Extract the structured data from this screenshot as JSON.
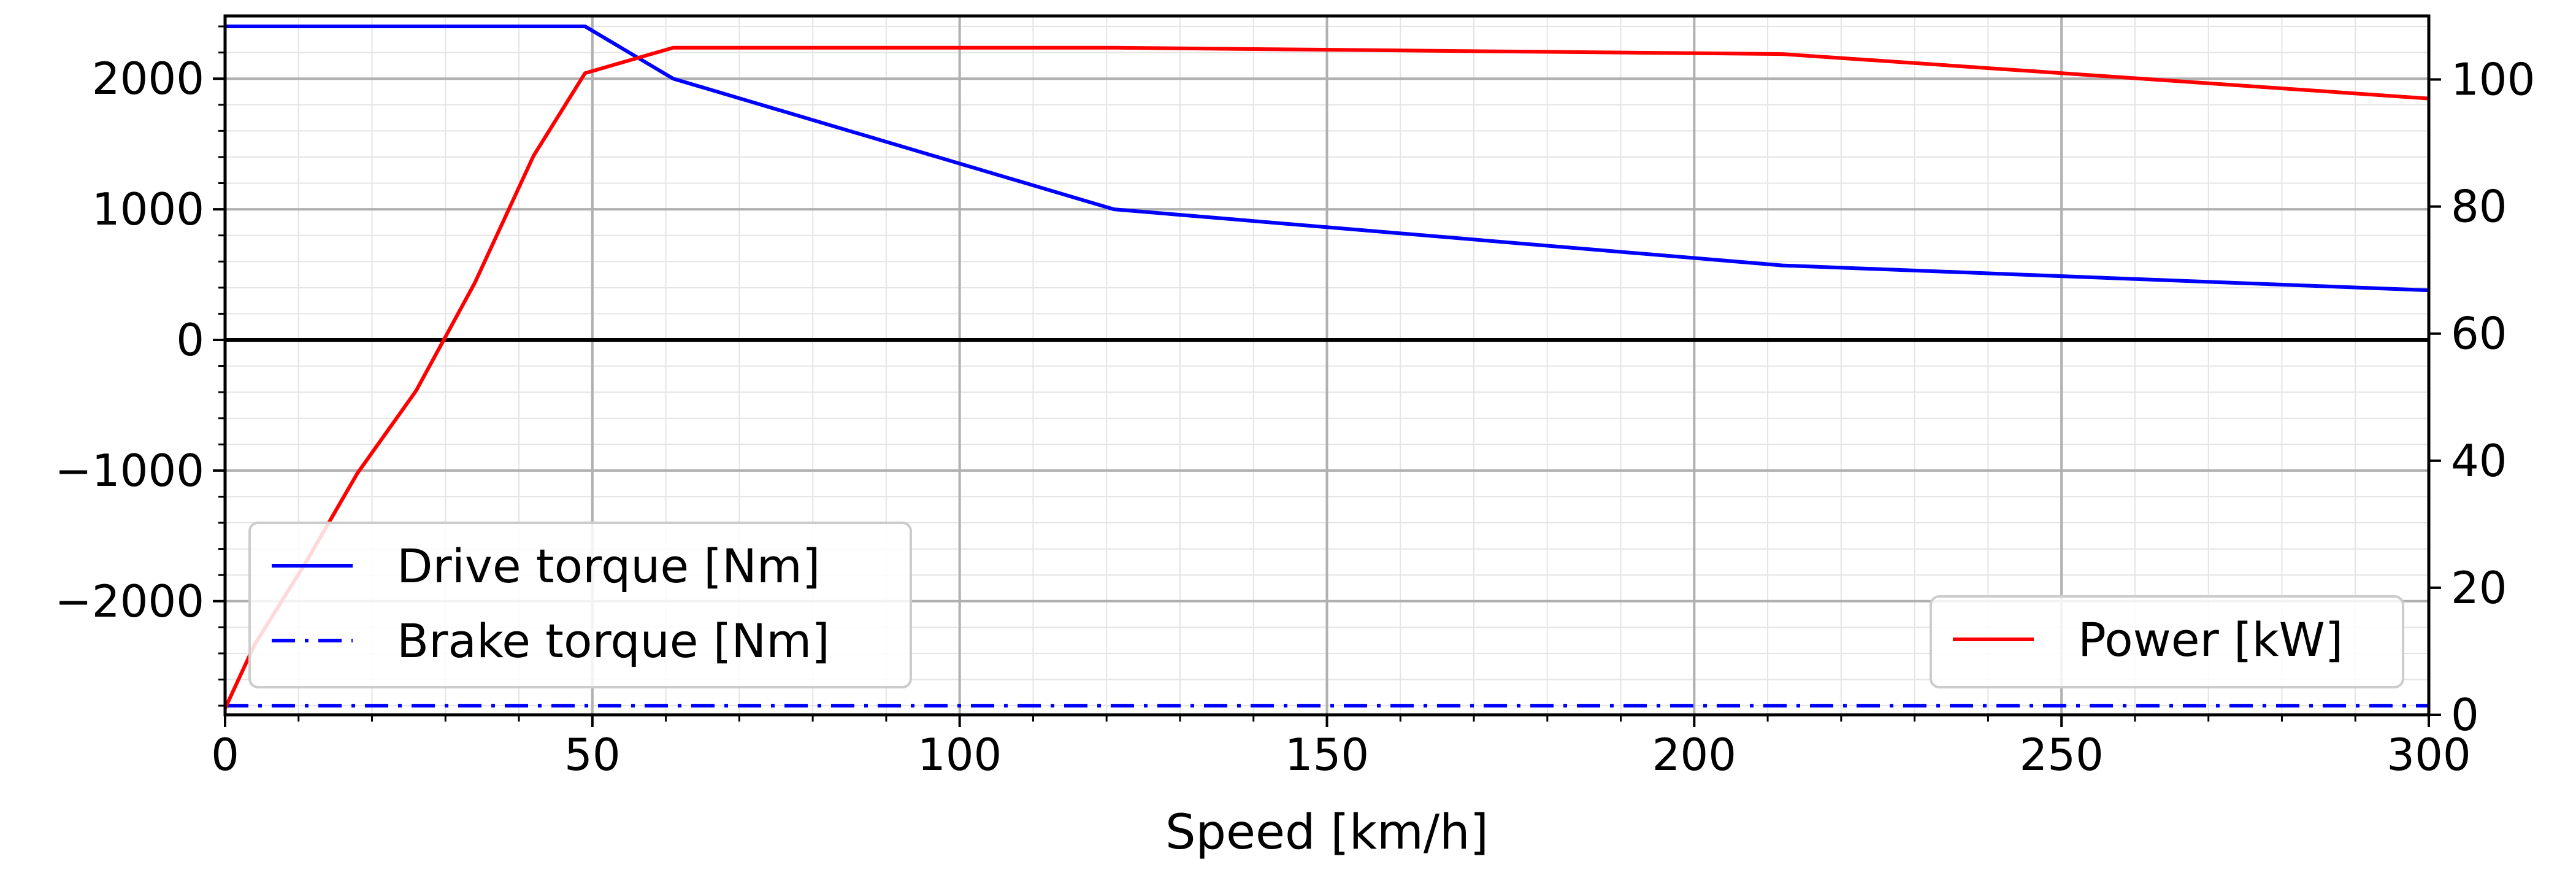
{
  "chart_data": {
    "type": "line",
    "title": "",
    "xlabel": "Speed [km/h]",
    "ylabel": "",
    "y2label": "",
    "xlim": [
      0,
      300
    ],
    "ylim": [
      -2870,
      2480
    ],
    "y2lim": [
      0,
      110
    ],
    "x_ticks": [
      0,
      50,
      100,
      150,
      200,
      250,
      300
    ],
    "x_tick_labels": [
      "0",
      "50",
      "100",
      "150",
      "200",
      "250",
      "300"
    ],
    "y_ticks": [
      -2000,
      -1000,
      0,
      1000,
      2000
    ],
    "y_tick_labels": [
      "−2000",
      "−1000",
      "0",
      "1000",
      "2000"
    ],
    "y2_ticks": [
      0,
      20,
      40,
      60,
      80,
      100
    ],
    "y2_tick_labels": [
      "0",
      "20",
      "40",
      "60",
      "80",
      "100"
    ],
    "grid": true,
    "minor_grid": true,
    "zero_line": true,
    "series": [
      {
        "name": "Drive torque [Nm]",
        "axis": "left",
        "color": "#0000ff",
        "style": "solid",
        "x": [
          0,
          49,
          61,
          121,
          212,
          300
        ],
        "y": [
          2400,
          2400,
          2000,
          1000,
          570,
          380
        ]
      },
      {
        "name": "Brake torque [Nm]",
        "axis": "left",
        "color": "#0000ff",
        "style": "dashdot",
        "x": [
          0,
          300
        ],
        "y": [
          -2800,
          -2800
        ]
      },
      {
        "name": "Power [kW]",
        "axis": "right",
        "color": "#ff0000",
        "style": "solid",
        "x": [
          0,
          4,
          11,
          18,
          26,
          34,
          42,
          49,
          55,
          61,
          121,
          212,
          250,
          300
        ],
        "y": [
          1,
          11,
          24,
          38,
          51,
          68,
          88,
          101,
          103,
          105,
          105,
          104,
          101,
          97
        ]
      }
    ],
    "legends": [
      {
        "placement": "lower-left",
        "entries": [
          "Drive torque [Nm]",
          "Brake torque [Nm]"
        ]
      },
      {
        "placement": "lower-right",
        "entries": [
          "Power [kW]"
        ]
      }
    ]
  }
}
